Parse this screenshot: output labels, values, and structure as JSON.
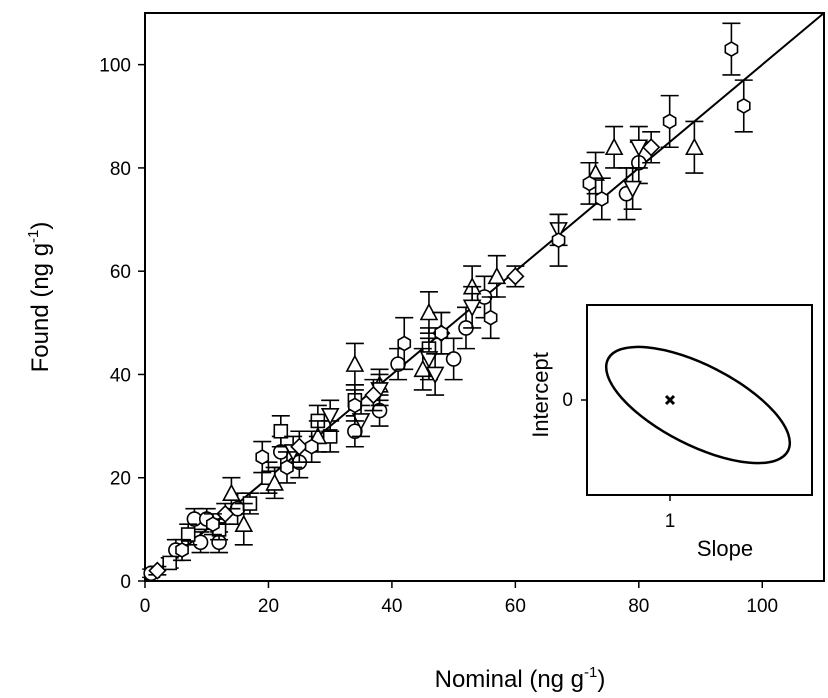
{
  "chart_data": {
    "type": "scatter",
    "title": "",
    "xlabel": {
      "text": "Nominal (ng g",
      "sup": "-1",
      "close": ")"
    },
    "ylabel": {
      "text": "Found (ng g",
      "sup": "-1",
      "close": ")"
    },
    "xlim": [
      0,
      110
    ],
    "ylim": [
      0,
      110
    ],
    "x_ticks": [
      "0",
      "20",
      "40",
      "60",
      "80",
      "100"
    ],
    "y_ticks": [
      "0",
      "20",
      "40",
      "60",
      "80",
      "100"
    ],
    "grid": false,
    "legend": "none",
    "regression_line": {
      "x": [
        0,
        110
      ],
      "y": [
        0,
        110
      ]
    },
    "marker_shapes": [
      "circle",
      "square",
      "triangle-up",
      "triangle-down",
      "diamond",
      "hexagon"
    ],
    "series": [
      {
        "marker": "circle",
        "points": [
          {
            "x": 1,
            "y": 1.5,
            "err": 0.8
          },
          {
            "x": 5,
            "y": 6,
            "err": 2
          },
          {
            "x": 8,
            "y": 12,
            "err": 2
          },
          {
            "x": 9,
            "y": 7.5,
            "err": 2
          },
          {
            "x": 10,
            "y": 12,
            "err": 2
          },
          {
            "x": 12,
            "y": 7.5,
            "err": 2
          },
          {
            "x": 15,
            "y": 14,
            "err": 3
          },
          {
            "x": 22,
            "y": 25,
            "err": 3
          },
          {
            "x": 25,
            "y": 23,
            "err": 3
          },
          {
            "x": 34,
            "y": 29,
            "err": 3
          },
          {
            "x": 38,
            "y": 33,
            "err": 3
          },
          {
            "x": 41,
            "y": 42,
            "err": 3
          },
          {
            "x": 50,
            "y": 43,
            "err": 4
          },
          {
            "x": 52,
            "y": 49,
            "err": 4
          },
          {
            "x": 55,
            "y": 55,
            "err": 4
          },
          {
            "x": 80,
            "y": 81,
            "err": 4
          },
          {
            "x": 78,
            "y": 75,
            "err": 5
          }
        ]
      },
      {
        "marker": "square",
        "points": [
          {
            "x": 4,
            "y": 3.5,
            "err": 1
          },
          {
            "x": 7,
            "y": 9,
            "err": 2
          },
          {
            "x": 12,
            "y": 10,
            "err": 2
          },
          {
            "x": 17,
            "y": 15,
            "err": 2
          },
          {
            "x": 20,
            "y": 20,
            "err": 3
          },
          {
            "x": 22,
            "y": 29,
            "err": 3
          },
          {
            "x": 28,
            "y": 31,
            "err": 3
          },
          {
            "x": 30,
            "y": 28,
            "err": 3
          },
          {
            "x": 34,
            "y": 35,
            "err": 3
          },
          {
            "x": 46,
            "y": 45,
            "err": 4
          }
        ]
      },
      {
        "marker": "triangle-up",
        "points": [
          {
            "x": 14,
            "y": 17,
            "err": 3
          },
          {
            "x": 16,
            "y": 11,
            "err": 4
          },
          {
            "x": 21,
            "y": 19,
            "err": 3
          },
          {
            "x": 28,
            "y": 28,
            "err": 3
          },
          {
            "x": 34,
            "y": 42,
            "err": 4
          },
          {
            "x": 38,
            "y": 38,
            "err": 3
          },
          {
            "x": 45,
            "y": 41,
            "err": 4
          },
          {
            "x": 46,
            "y": 52,
            "err": 4
          },
          {
            "x": 53,
            "y": 57,
            "err": 4
          },
          {
            "x": 57,
            "y": 59,
            "err": 4
          },
          {
            "x": 73,
            "y": 79,
            "err": 4
          },
          {
            "x": 76,
            "y": 84,
            "err": 4
          },
          {
            "x": 89,
            "y": 84,
            "err": 5
          }
        ]
      },
      {
        "marker": "triangle-down",
        "points": [
          {
            "x": 24,
            "y": 25,
            "err": 3
          },
          {
            "x": 30,
            "y": 32,
            "err": 3
          },
          {
            "x": 35,
            "y": 31,
            "err": 3
          },
          {
            "x": 38,
            "y": 37,
            "err": 3
          },
          {
            "x": 46,
            "y": 43,
            "err": 4
          },
          {
            "x": 47,
            "y": 40,
            "err": 4
          },
          {
            "x": 53,
            "y": 53,
            "err": 4
          },
          {
            "x": 67,
            "y": 68,
            "err": 3
          },
          {
            "x": 79,
            "y": 76,
            "err": 4
          },
          {
            "x": 80,
            "y": 84,
            "err": 4
          }
        ]
      },
      {
        "marker": "diamond",
        "points": [
          {
            "x": 2,
            "y": 2,
            "err": 0.8
          },
          {
            "x": 13,
            "y": 13,
            "err": 2
          },
          {
            "x": 25,
            "y": 26,
            "err": 3
          },
          {
            "x": 37,
            "y": 36,
            "err": 3
          },
          {
            "x": 48,
            "y": 48,
            "err": 4
          },
          {
            "x": 60,
            "y": 59,
            "err": 2
          },
          {
            "x": 82,
            "y": 84,
            "err": 3
          }
        ]
      },
      {
        "marker": "hexagon",
        "points": [
          {
            "x": 6,
            "y": 6,
            "err": 2
          },
          {
            "x": 11,
            "y": 11,
            "err": 2
          },
          {
            "x": 19,
            "y": 24,
            "err": 3
          },
          {
            "x": 23,
            "y": 22,
            "err": 3
          },
          {
            "x": 27,
            "y": 26,
            "err": 3
          },
          {
            "x": 34,
            "y": 34,
            "err": 3
          },
          {
            "x": 42,
            "y": 46,
            "err": 5
          },
          {
            "x": 48,
            "y": 48,
            "err": 4
          },
          {
            "x": 56,
            "y": 51,
            "err": 4
          },
          {
            "x": 67,
            "y": 66,
            "err": 5
          },
          {
            "x": 72,
            "y": 77,
            "err": 4
          },
          {
            "x": 74,
            "y": 74,
            "err": 4
          },
          {
            "x": 85,
            "y": 89,
            "err": 5
          },
          {
            "x": 95,
            "y": 103,
            "err": 5
          },
          {
            "x": 97,
            "y": 92,
            "err": 5
          }
        ]
      }
    ],
    "inset": {
      "xlabel": "Slope",
      "ylabel": "Intercept",
      "x_tick": "1",
      "y_tick": "0",
      "marker": "x",
      "ellipse": "confidence-ellipse"
    }
  }
}
